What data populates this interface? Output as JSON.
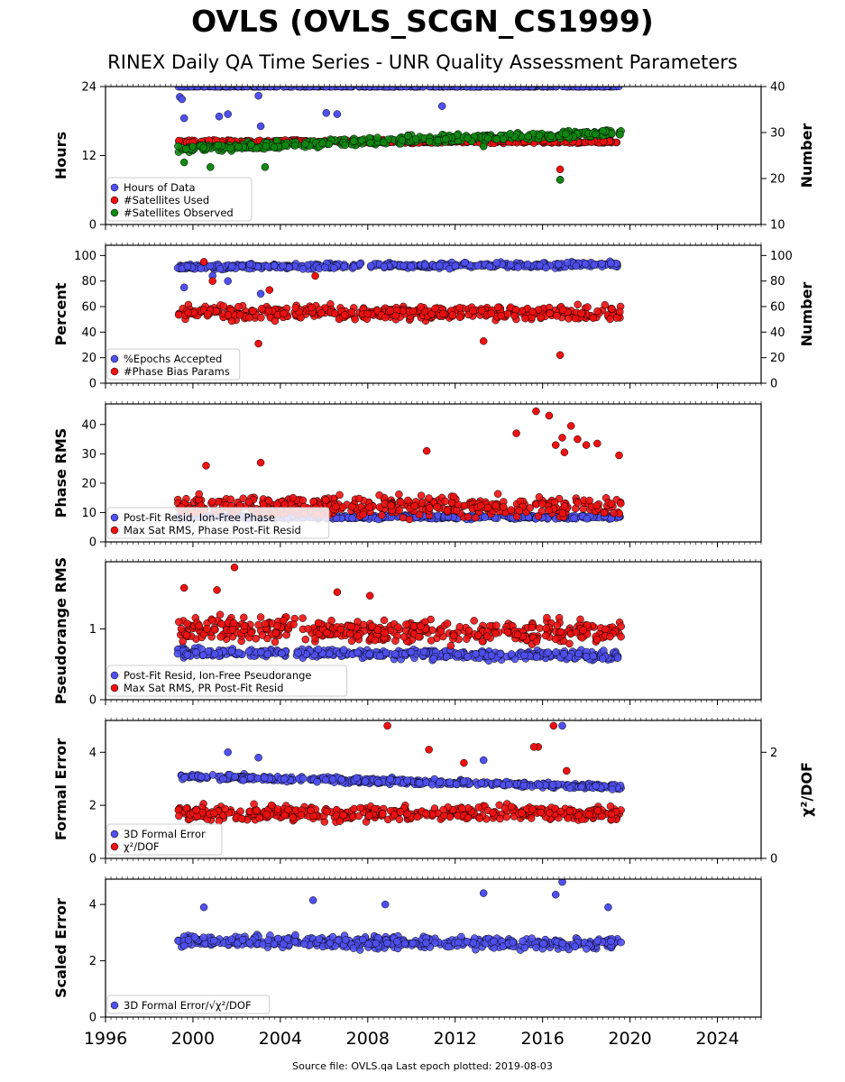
{
  "title": "OVLS (OVLS_SCGN_CS1999)",
  "subtitle": "RINEX Daily QA Time Series - UNR Quality Assessment Parameters",
  "footer": "Source file: OVLS.qa Last epoch plotted: 2019-08-03",
  "colors": {
    "blue": "#5050f0",
    "red": "#ee1111",
    "green": "#118811"
  },
  "x_axis": {
    "range": [
      1996,
      2026
    ],
    "ticks": [
      "1996",
      "2000",
      "2004",
      "2008",
      "2012",
      "2016",
      "2020",
      "2024"
    ]
  },
  "chart_data": [
    {
      "type": "scatter",
      "ylabel": "Hours",
      "ylim": [
        0,
        24
      ],
      "yticks": [
        "0",
        "12",
        "24"
      ],
      "ylabel_right": "Number",
      "ylim_right": [
        10,
        40
      ],
      "yticks_right": [
        "10",
        "20",
        "30",
        "40"
      ],
      "legend_position": "bottom-left",
      "series": [
        {
          "name": "Hours of Data",
          "color": "blue",
          "axis": "left",
          "summary": {
            "x_range": [
              1999.3,
              2019.6
            ],
            "level": 24.0,
            "spread": 0.05
          },
          "outliers": [
            [
              1999.4,
              22.2
            ],
            [
              1999.5,
              21.8
            ],
            [
              1999.6,
              18.5
            ],
            [
              2001.2,
              18.8
            ],
            [
              2001.6,
              19.2
            ],
            [
              2003.1,
              17.1
            ],
            [
              2003.0,
              22.4
            ],
            [
              2006.1,
              19.4
            ],
            [
              2006.6,
              19.2
            ],
            [
              2011.4,
              20.6
            ],
            [
              2016.8,
              7.8
            ]
          ]
        },
        {
          "name": "#Satellites Used",
          "color": "red",
          "axis": "right",
          "summary": {
            "x_range": [
              1999.3,
              2019.6
            ],
            "level": 28.0,
            "spread": 0.5
          },
          "outliers": [
            [
              2016.8,
              22.0
            ]
          ]
        },
        {
          "name": "#Satellites Observed",
          "color": "green",
          "axis": "right",
          "summary": {
            "x_range": [
              1999.3,
              2019.6
            ],
            "start_level": 26.5,
            "end_level": 30.0,
            "spread": 1.3
          },
          "outliers": [
            [
              2016.8,
              19.7
            ],
            [
              1999.6,
              23.5
            ],
            [
              2000.8,
              22.5
            ],
            [
              2003.3,
              22.5
            ],
            [
              2013.3,
              27.0
            ]
          ]
        }
      ]
    },
    {
      "type": "scatter",
      "ylabel": "Percent",
      "ylim": [
        0,
        108
      ],
      "yticks": [
        "0",
        "20",
        "40",
        "60",
        "80",
        "100"
      ],
      "ylabel_right": "Number",
      "ylim_right": [
        0,
        108
      ],
      "yticks_right": [
        "0",
        "20",
        "40",
        "60",
        "80",
        "100"
      ],
      "legend_position": "bottom-left",
      "series": [
        {
          "name": "%Epochs Accepted",
          "color": "blue",
          "axis": "left",
          "summary": {
            "x_range": [
              1999.3,
              2019.6
            ],
            "start_level": 91,
            "end_level": 93,
            "spread": 3
          },
          "outliers": [
            [
              1999.6,
              75
            ],
            [
              2000.9,
              84
            ],
            [
              2001.6,
              80
            ],
            [
              2003.1,
              70
            ]
          ]
        },
        {
          "name": "#Phase Bias Params",
          "color": "red",
          "axis": "right",
          "summary": {
            "x_range": [
              1999.3,
              2019.6
            ],
            "level": 55,
            "spread": 8
          },
          "outliers": [
            [
              2000.5,
              95
            ],
            [
              2003.0,
              31
            ],
            [
              2005.6,
              84
            ],
            [
              2013.3,
              33
            ],
            [
              2016.8,
              22
            ],
            [
              2000.9,
              80
            ],
            [
              2003.5,
              73
            ]
          ]
        }
      ]
    },
    {
      "type": "scatter",
      "ylabel": "Phase RMS",
      "ylim": [
        0,
        47
      ],
      "yticks": [
        "0",
        "10",
        "20",
        "30",
        "40"
      ],
      "legend_position": "bottom-left",
      "series": [
        {
          "name": "Post-Fit Resid, Ion-Free Phase",
          "color": "blue",
          "axis": "left",
          "summary": {
            "x_range": [
              1999.3,
              2019.6
            ],
            "level": 8.5,
            "spread": 1
          },
          "outliers": []
        },
        {
          "name": "Max Sat RMS, Phase Post-Fit Resid",
          "color": "red",
          "axis": "left",
          "summary": {
            "x_range": [
              1999.3,
              2019.6
            ],
            "level": 12,
            "spread": 5
          },
          "outliers": [
            [
              2015.7,
              44.5
            ],
            [
              2016.3,
              43
            ],
            [
              2017.3,
              39.5
            ],
            [
              2016.9,
              35.5
            ],
            [
              2017.0,
              30.5
            ],
            [
              2010.7,
              31
            ],
            [
              2014.8,
              37
            ],
            [
              2018.5,
              33.5
            ],
            [
              2019.5,
              29.5
            ],
            [
              2000.6,
              26
            ],
            [
              2003.1,
              27
            ],
            [
              2016.6,
              33
            ],
            [
              2017.6,
              35
            ],
            [
              2018.0,
              33
            ]
          ]
        }
      ]
    },
    {
      "type": "scatter",
      "ylabel": "Pseudorange RMS",
      "ylim": [
        0,
        1.95
      ],
      "yticks": [
        "0",
        "1"
      ],
      "legend_position": "bottom-left",
      "series": [
        {
          "name": "Post-Fit Resid, Ion-Free Pseudorange",
          "color": "blue",
          "axis": "left",
          "summary": {
            "x_range": [
              1999.3,
              2019.6
            ],
            "start_level": 0.67,
            "end_level": 0.62,
            "spread": 0.09
          },
          "outliers": []
        },
        {
          "name": "Max Sat RMS, PR Post-Fit Resid",
          "color": "red",
          "axis": "left",
          "summary": {
            "x_range": [
              1999.3,
              2019.6
            ],
            "start_level": 1.0,
            "end_level": 0.95,
            "spread": 0.25
          },
          "outliers": [
            [
              2001.9,
              1.87
            ],
            [
              1999.6,
              1.58
            ],
            [
              2001.1,
              1.55
            ],
            [
              2006.6,
              1.52
            ],
            [
              2008.1,
              1.47
            ]
          ]
        }
      ]
    },
    {
      "type": "scatter",
      "ylabel": "Formal Error",
      "ylim": [
        0,
        5.2
      ],
      "yticks": [
        "0",
        "2",
        "4"
      ],
      "ylabel_right": "χ²/DOF",
      "ylim_right": [
        0,
        2.6
      ],
      "yticks_right": [
        "0",
        "2"
      ],
      "legend_position": "bottom-left",
      "series": [
        {
          "name": "3D Formal Error",
          "color": "blue",
          "axis": "left",
          "summary": {
            "x_range": [
              1999.3,
              2019.6
            ],
            "start_level": 3.1,
            "end_level": 2.7,
            "spread": 0.15
          },
          "outliers": [
            [
              2001.6,
              4.0
            ],
            [
              2003.0,
              3.8
            ],
            [
              2013.3,
              3.7
            ],
            [
              2016.9,
              5.0
            ]
          ]
        },
        {
          "name": "χ²/DOF",
          "color": "red",
          "axis": "right",
          "summary": {
            "x_range": [
              1999.3,
              2019.6
            ],
            "start_level": 0.85,
            "end_level": 0.85,
            "spread": 0.2
          },
          "outliers": [
            [
              2008.9,
              2.5
            ],
            [
              2016.5,
              2.5
            ],
            [
              2015.8,
              2.1
            ],
            [
              2015.6,
              2.1
            ],
            [
              2010.8,
              2.05
            ],
            [
              2012.4,
              1.8
            ],
            [
              2017.1,
              1.65
            ]
          ]
        }
      ]
    },
    {
      "type": "scatter",
      "ylabel": "Scaled Error",
      "ylim": [
        0,
        4.9
      ],
      "yticks": [
        "0",
        "2",
        "4"
      ],
      "legend_position": "bottom-left",
      "series": [
        {
          "name": "3D Formal Error/√χ²/DOF",
          "color": "blue",
          "axis": "left",
          "summary": {
            "x_range": [
              1999.3,
              2019.6
            ],
            "start_level": 2.7,
            "end_level": 2.6,
            "spread": 0.3
          },
          "outliers": [
            [
              2013.3,
              4.4
            ],
            [
              2016.9,
              4.8
            ],
            [
              2016.6,
              4.35
            ],
            [
              2005.5,
              4.15
            ],
            [
              2008.8,
              4.0
            ],
            [
              2000.5,
              3.9
            ],
            [
              2019.0,
              3.9
            ]
          ]
        }
      ]
    }
  ]
}
